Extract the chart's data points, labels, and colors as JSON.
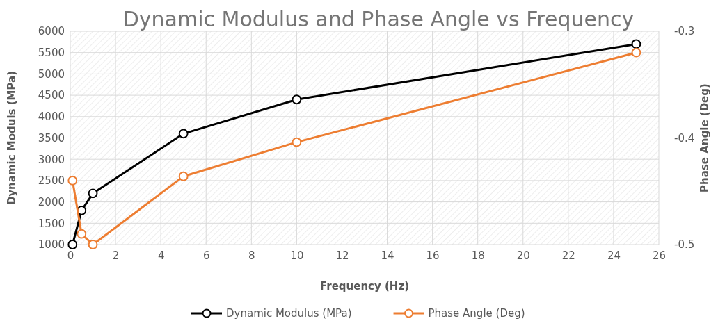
{
  "chart_data": {
    "type": "line",
    "title": "Dynamic Modulus and Phase Angle vs Frequency",
    "xlabel": "Frequency (Hz)",
    "ylabel": "Dynamic Moduls (MPa)",
    "y2label": "Phase Angle (Deg)",
    "x": [
      0.1,
      0.5,
      1,
      5,
      10,
      25
    ],
    "series": [
      {
        "name": "Dynamic Modulus (MPa)",
        "color": "#000000",
        "values": [
          1000,
          1800,
          2200,
          3600,
          4400,
          5700
        ]
      },
      {
        "name": "Phase Angle (Deg)",
        "color": "#ed7d31",
        "axis": "y2",
        "values": [
          -0.44,
          -0.49,
          -0.5,
          -0.436,
          -0.404,
          -0.32
        ]
      }
    ],
    "xlim": [
      0,
      26
    ],
    "xticks": [
      0,
      2,
      4,
      6,
      8,
      10,
      12,
      14,
      16,
      18,
      20,
      22,
      24,
      26
    ],
    "ylim": [
      1000,
      6000
    ],
    "yticks": [
      1000,
      1500,
      2000,
      2500,
      3000,
      3500,
      4000,
      4500,
      5000,
      5500,
      6000
    ],
    "y2lim": [
      -0.5,
      -0.3
    ],
    "y2ticks": [
      -0.5,
      -0.4,
      -0.3
    ],
    "grid": true,
    "legend": "bottom",
    "marker": "circle",
    "line_style": "solid"
  }
}
